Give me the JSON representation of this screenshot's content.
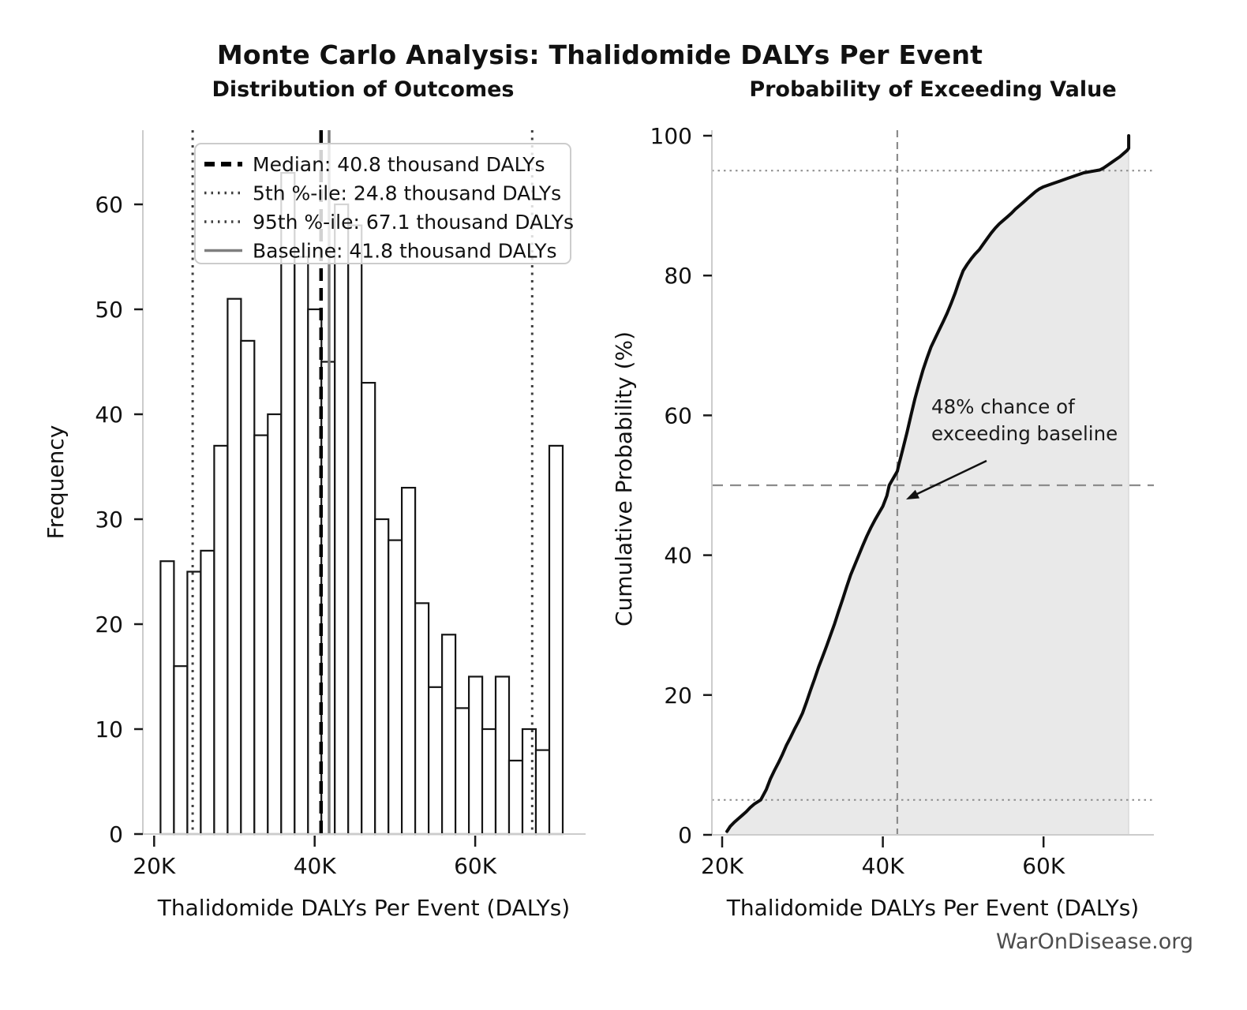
{
  "page": {
    "title": "Monte Carlo Analysis: Thalidomide DALYs Per Event",
    "footer": "WarOnDisease.org"
  },
  "colors": {
    "text": "#111111",
    "footer_text": "#4d4d4d",
    "spine": "#cccccc",
    "tick": "#1a1a1a",
    "bar_fill": "#ffffff",
    "bar_edge": "#151515",
    "median": "#000000",
    "percentile": "#3f3f3f",
    "baseline": "#7f7f7f",
    "guide": "#8c8c8c",
    "cdf_line": "#0d0d0d",
    "cdf_fill": "#e9e9e9",
    "cdf_fill_edge": "#cfcfcf",
    "legend_border": "#cccccc",
    "annotation_text": "#1a1a1a"
  },
  "stats": {
    "median_thousand_dalys": 40.8,
    "percentile_5_thousand_dalys": 24.8,
    "percentile_95_thousand_dalys": 67.1,
    "baseline_thousand_dalys": 41.8,
    "prob_exceed_baseline_percent": 48
  },
  "chart_data": [
    {
      "type": "bar",
      "title": "Distribution of Outcomes",
      "xlabel": "Thalidomide DALYs Per Event (DALYs)",
      "ylabel": "Frequency",
      "x_unit": "thousand DALYs",
      "bin_start_thousands": 20.8,
      "bin_width_thousands": 1.67,
      "values": [
        26,
        16,
        25,
        27,
        37,
        51,
        47,
        38,
        40,
        63,
        55,
        50,
        45,
        60,
        58,
        43,
        30,
        28,
        33,
        22,
        14,
        19,
        12,
        15,
        10,
        15,
        7,
        10,
        8,
        37
      ],
      "xlim_thousands": [
        18.6,
        73.6
      ],
      "ylim": [
        0,
        67
      ],
      "grid": false,
      "yticks": [
        0,
        10,
        20,
        30,
        40,
        50,
        60
      ],
      "xticks": [
        {
          "value_thousands": 20,
          "label": "20K"
        },
        {
          "value_thousands": 40,
          "label": "40K"
        },
        {
          "value_thousands": 60,
          "label": "60K"
        }
      ],
      "vlines": [
        {
          "name": "percentile-5-line",
          "value_thousands": 24.8,
          "style": "dotted",
          "color": "#3f3f3f",
          "width": 3
        },
        {
          "name": "percentile-95-line",
          "value_thousands": 67.1,
          "style": "dotted",
          "color": "#3f3f3f",
          "width": 3
        },
        {
          "name": "baseline-line",
          "value_thousands": 41.8,
          "style": "solid",
          "color": "#7f7f7f",
          "width": 3.5
        },
        {
          "name": "median-line",
          "value_thousands": 40.8,
          "style": "dashed",
          "color": "#000000",
          "width": 4.5
        }
      ],
      "legend": {
        "position": "upper left",
        "entries": [
          {
            "label": "Median: 40.8 thousand DALYs",
            "style": "dashed",
            "color": "#000000",
            "sample_width": 6
          },
          {
            "label": "5th %-ile: 24.8 thousand DALYs",
            "style": "dotted",
            "color": "#3f3f3f",
            "sample_width": 3.5
          },
          {
            "label": "95th %-ile: 67.1 thousand DALYs",
            "style": "dotted",
            "color": "#3f3f3f",
            "sample_width": 3.5
          },
          {
            "label": "Baseline: 41.8 thousand DALYs",
            "style": "solid",
            "color": "#7f7f7f",
            "sample_width": 3.5
          }
        ]
      }
    },
    {
      "type": "line",
      "title": "Probability of Exceeding Value",
      "xlabel": "Thalidomide DALYs Per Event (DALYs)",
      "ylabel": "Cumulative Probability (%)",
      "x_unit": "thousand DALYs",
      "fill_under_curve": true,
      "xlim_thousands": [
        18.7,
        73.7
      ],
      "ylim": [
        0,
        100
      ],
      "grid": false,
      "yticks": [
        0,
        20,
        40,
        60,
        80,
        100
      ],
      "xticks": [
        {
          "value_thousands": 20,
          "label": "20K"
        },
        {
          "value_thousands": 40,
          "label": "40K"
        },
        {
          "value_thousands": 60,
          "label": "60K"
        }
      ],
      "x_thousands": [
        20.6,
        21,
        21.5,
        22,
        22.5,
        23,
        23.5,
        24,
        24.8,
        25.5,
        26,
        26.5,
        27,
        27.5,
        28,
        28.5,
        29,
        29.5,
        30,
        30.5,
        31,
        31.5,
        32,
        32.5,
        33,
        33.5,
        34,
        34.5,
        35,
        35.5,
        36,
        36.5,
        37,
        37.5,
        38,
        38.5,
        39,
        39.5,
        40,
        40.5,
        40.8,
        41.3,
        41.8,
        42,
        42.5,
        43,
        43.5,
        44,
        44.5,
        45,
        45.5,
        46,
        46.5,
        47,
        47.5,
        48,
        48.5,
        49,
        49.5,
        50,
        50.5,
        51,
        51.5,
        52,
        52.5,
        53,
        53.5,
        54,
        54.5,
        55,
        55.5,
        56,
        56.5,
        57,
        57.5,
        58,
        58.5,
        59,
        59.5,
        60,
        61,
        62,
        63,
        64,
        65,
        66,
        67,
        67.5,
        68,
        68.5,
        69,
        69.5,
        70,
        70.4,
        70.6,
        70.6
      ],
      "y_percent": [
        0.5,
        1.2,
        1.8,
        2.3,
        2.8,
        3.3,
        3.9,
        4.4,
        5,
        6.5,
        8,
        9.2,
        10.3,
        11.5,
        12.8,
        13.9,
        15.1,
        16.2,
        17.4,
        19,
        20.7,
        22.3,
        24,
        25.5,
        27,
        28.6,
        30.2,
        32,
        33.7,
        35.5,
        37.2,
        38.6,
        40,
        41.4,
        42.7,
        43.9,
        45,
        46,
        47,
        48.5,
        50,
        51,
        52,
        53,
        55.2,
        57.5,
        60,
        62.4,
        64.5,
        66.5,
        68.2,
        69.8,
        71,
        72.2,
        73.4,
        74.6,
        76,
        77.5,
        79.2,
        80.7,
        81.6,
        82.4,
        83.1,
        83.7,
        84.5,
        85.3,
        86.1,
        86.8,
        87.4,
        87.9,
        88.4,
        88.9,
        89.5,
        90,
        90.5,
        91,
        91.5,
        92,
        92.4,
        92.7,
        93.1,
        93.5,
        93.9,
        94.3,
        94.7,
        94.9,
        95.1,
        95.4,
        95.8,
        96.2,
        96.6,
        97,
        97.5,
        97.9,
        98.2,
        100
      ],
      "hlines": [
        {
          "name": "percentile-5-guide",
          "value_percent": 5,
          "style": "dotted",
          "color": "#8c8c8c",
          "width": 2
        },
        {
          "name": "percentile-95-guide",
          "value_percent": 95,
          "style": "dotted",
          "color": "#8c8c8c",
          "width": 2
        },
        {
          "name": "median-50-guide",
          "value_percent": 50,
          "style": "dashed",
          "color": "#8c8c8c",
          "width": 2.2
        }
      ],
      "vlines": [
        {
          "name": "baseline-guide",
          "value_thousands": 41.8,
          "style": "dashed",
          "color": "#8c8c8c",
          "width": 2.2
        }
      ],
      "annotation": {
        "line1": "48% chance of",
        "line2": "exceeding baseline"
      }
    }
  ]
}
